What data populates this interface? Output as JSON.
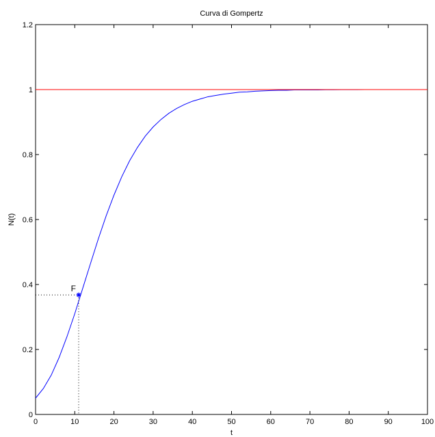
{
  "chart_data": {
    "type": "line",
    "title": "Curva di Gompertz",
    "xlabel": "t",
    "ylabel": "N(t)",
    "xlim": [
      0,
      100
    ],
    "ylim": [
      0,
      1.2
    ],
    "xticks": [
      0,
      10,
      20,
      30,
      40,
      50,
      60,
      70,
      80,
      90,
      100
    ],
    "yticks": [
      0,
      0.2,
      0.4,
      0.6,
      0.8,
      1,
      1.2
    ],
    "xtick_labels": [
      "0",
      "10",
      "20",
      "30",
      "40",
      "50",
      "60",
      "70",
      "80",
      "90",
      "100"
    ],
    "ytick_labels": [
      "0",
      "0.2",
      "0.4",
      "0.6",
      "0.8",
      "1",
      "1.2"
    ],
    "grid": false,
    "series": [
      {
        "color": "#0000ff",
        "x": [
          0,
          2,
          4,
          6,
          8,
          10,
          12,
          14,
          16,
          18,
          20,
          22,
          24,
          26,
          28,
          30,
          32,
          34,
          36,
          38,
          40,
          42,
          44,
          46,
          48,
          50,
          52,
          54,
          56,
          58,
          60,
          62,
          64,
          66,
          68,
          70,
          72,
          74,
          76,
          78,
          80,
          82,
          84,
          86,
          88,
          90,
          92,
          94,
          96,
          98,
          100
        ],
        "y": [
          0.05,
          0.08,
          0.121,
          0.175,
          0.239,
          0.31,
          0.387,
          0.464,
          0.54,
          0.611,
          0.675,
          0.732,
          0.781,
          0.822,
          0.857,
          0.885,
          0.908,
          0.927,
          0.942,
          0.954,
          0.964,
          0.971,
          0.978,
          0.982,
          0.986,
          0.989,
          0.992,
          0.993,
          0.995,
          0.996,
          0.997,
          0.998,
          0.998,
          0.999,
          0.999,
          0.999,
          0.999,
          0.9995,
          0.9996,
          0.9997,
          0.9998,
          0.9998,
          0.9999,
          0.9999,
          0.9999,
          0.9999,
          1.0,
          1.0,
          1.0,
          1.0,
          1.0
        ]
      },
      {
        "color": "#ff0000",
        "x": [
          0,
          100
        ],
        "y": [
          1,
          1
        ]
      }
    ],
    "annotations": [
      {
        "text": "F",
        "x": 11,
        "y": 0.368,
        "marker": "*",
        "color": "#0000ff",
        "dotted_guides": true
      }
    ]
  }
}
